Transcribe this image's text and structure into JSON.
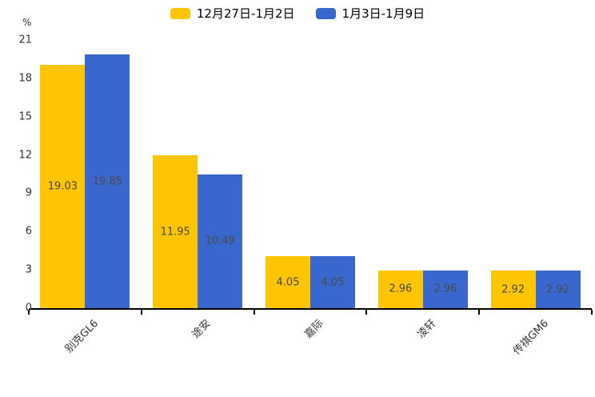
{
  "chart_data": {
    "type": "bar",
    "title": "",
    "categories": [
      "别克GL6",
      "途安",
      "嘉际",
      "凌轩",
      "传祺GM6"
    ],
    "series": [
      {
        "name": "12月27日-1月2日",
        "color": "#FDC503",
        "values": [
          19.03,
          11.95,
          4.05,
          2.96,
          2.92
        ]
      },
      {
        "name": "1月3日-1月9日",
        "color": "#3A67CD",
        "values": [
          19.85,
          10.49,
          4.05,
          2.96,
          2.92
        ]
      }
    ],
    "xlabel": "",
    "ylabel": "%",
    "ylim": [
      0,
      21
    ],
    "yticks": [
      0,
      3,
      6,
      9,
      12,
      15,
      18,
      21
    ],
    "grid": false,
    "legend_position": "top",
    "value_labels": "inside-center"
  },
  "colors": {
    "axis": "#000000",
    "tick_text": "#333333",
    "value_label_text": "#4a4a4a",
    "background": "#ffffff"
  }
}
